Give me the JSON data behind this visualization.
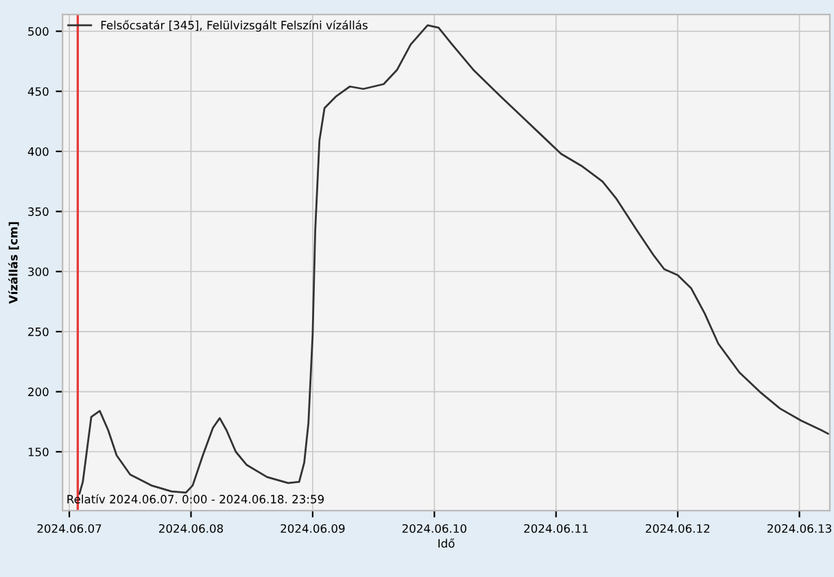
{
  "chart_data": {
    "type": "line",
    "xlabel": "Idő",
    "ylabel": "Vízállás [cm]",
    "x": [
      "2024-06-07T02:00",
      "2024-06-07T02:40",
      "2024-06-07T03:30",
      "2024-06-07T04:20",
      "2024-06-07T06:00",
      "2024-06-07T07:40",
      "2024-06-07T09:20",
      "2024-06-07T12:00",
      "2024-06-07T16:10",
      "2024-06-07T20:10",
      "2024-06-07T23:00",
      "2024-06-08T00:20",
      "2024-06-08T02:20",
      "2024-06-08T04:20",
      "2024-06-08T05:40",
      "2024-06-08T07:00",
      "2024-06-08T08:50",
      "2024-06-08T11:00",
      "2024-06-08T15:00",
      "2024-06-08T19:10",
      "2024-06-08T21:20",
      "2024-06-08T22:20",
      "2024-06-08T23:10",
      "2024-06-09T00:00",
      "2024-06-09T00:30",
      "2024-06-09T01:20",
      "2024-06-09T02:20",
      "2024-06-09T04:40",
      "2024-06-09T07:20",
      "2024-06-09T10:00",
      "2024-06-09T14:00",
      "2024-06-09T16:40",
      "2024-06-09T19:20",
      "2024-06-09T22:40",
      "2024-06-10T00:50",
      "2024-06-10T03:30",
      "2024-06-10T07:40",
      "2024-06-10T13:00",
      "2024-06-10T17:00",
      "2024-06-10T21:00",
      "2024-06-11T01:00",
      "2024-06-11T05:00",
      "2024-06-11T09:10",
      "2024-06-11T11:50",
      "2024-06-11T16:00",
      "2024-06-11T19:20",
      "2024-06-11T21:20",
      "2024-06-12T00:00",
      "2024-06-12T02:40",
      "2024-06-12T05:20",
      "2024-06-12T08:00",
      "2024-06-12T12:10",
      "2024-06-12T16:10",
      "2024-06-12T20:10",
      "2024-06-13T00:20",
      "2024-06-13T04:20",
      "2024-06-13T05:40"
    ],
    "series": [
      {
        "name": "Felsőcsatár [345], Felülvizsgált Felszíni vízállás",
        "color": "#333333",
        "values": [
          115,
          125,
          152,
          179,
          184,
          168,
          147,
          131,
          122,
          117,
          116,
          122,
          147,
          170,
          178,
          168,
          150,
          139,
          129,
          124,
          125,
          141,
          174,
          248,
          334,
          409,
          436,
          446,
          454,
          452,
          456,
          468,
          489,
          505,
          503,
          489,
          468,
          446,
          430,
          414,
          398,
          388,
          375,
          361,
          334,
          313,
          302,
          297,
          286,
          265,
          240,
          216,
          200,
          186,
          176,
          168,
          165
        ]
      }
    ],
    "xlim": [
      "2024-06-06T22:40",
      "2024-06-13T06:00"
    ],
    "ylim": [
      101,
      514
    ],
    "yticks": [
      150,
      200,
      250,
      300,
      350,
      400,
      450,
      500
    ],
    "xticks": [
      {
        "value": "2024-06-07",
        "label": "2024.06.07"
      },
      {
        "value": "2024-06-08",
        "label": "2024.06.08"
      },
      {
        "value": "2024-06-09",
        "label": "2024.06.09"
      },
      {
        "value": "2024-06-10",
        "label": "2024.06.10"
      },
      {
        "value": "2024-06-11",
        "label": "2024.06.11"
      },
      {
        "value": "2024-06-12",
        "label": "2024.06.12"
      },
      {
        "value": "2024-06-13",
        "label": "2024.06.13"
      }
    ],
    "ref_lines": [
      {
        "axis": "x",
        "value": "2024-06-07T01:40",
        "color": "#e83a3a"
      }
    ],
    "annotations": [
      "Relatív 2024.06.07. 0:00 - 2024.06.18. 23:59"
    ],
    "grid": true,
    "legend": "top left",
    "marker": "none",
    "line_style": "solid"
  }
}
